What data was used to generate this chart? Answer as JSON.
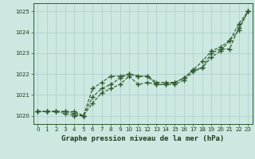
{
  "title": "Graphe pression niveau de la mer (hPa)",
  "background_color": "#cce8e0",
  "plot_bg_color": "#cce8e0",
  "grid_color": "#aacccc",
  "line_color": "#2d5a2d",
  "xlim": [
    -0.5,
    23.5
  ],
  "ylim": [
    1019.6,
    1025.4
  ],
  "yticks": [
    1020,
    1021,
    1022,
    1023,
    1024,
    1025
  ],
  "xticks": [
    0,
    1,
    2,
    3,
    4,
    5,
    6,
    7,
    8,
    9,
    10,
    11,
    12,
    13,
    14,
    15,
    16,
    17,
    18,
    19,
    20,
    21,
    22,
    23
  ],
  "series": [
    [
      1020.2,
      1020.2,
      1020.2,
      1020.2,
      1020.2,
      1020.0,
      1021.3,
      1021.6,
      1021.9,
      1021.9,
      1022.0,
      1021.9,
      1021.9,
      1021.6,
      1021.6,
      1021.6,
      1021.8,
      1022.2,
      1022.6,
      1023.1,
      1023.3,
      1023.6,
      1024.1,
      1025.0
    ],
    [
      1020.2,
      1020.2,
      1020.2,
      1020.2,
      1020.1,
      1020.0,
      1020.9,
      1021.3,
      1021.5,
      1021.8,
      1022.0,
      1021.9,
      1021.9,
      1021.5,
      1021.5,
      1021.6,
      1021.8,
      1022.2,
      1022.3,
      1023.0,
      1023.2,
      1023.2,
      1024.2,
      1025.0
    ],
    [
      1020.2,
      1020.2,
      1020.2,
      1020.1,
      1020.0,
      1020.0,
      1020.6,
      1021.1,
      1021.3,
      1021.5,
      1021.9,
      1021.5,
      1021.6,
      1021.5,
      1021.5,
      1021.5,
      1021.7,
      1022.1,
      1022.3,
      1022.8,
      1023.1,
      1023.6,
      1024.4,
      1025.0
    ]
  ]
}
